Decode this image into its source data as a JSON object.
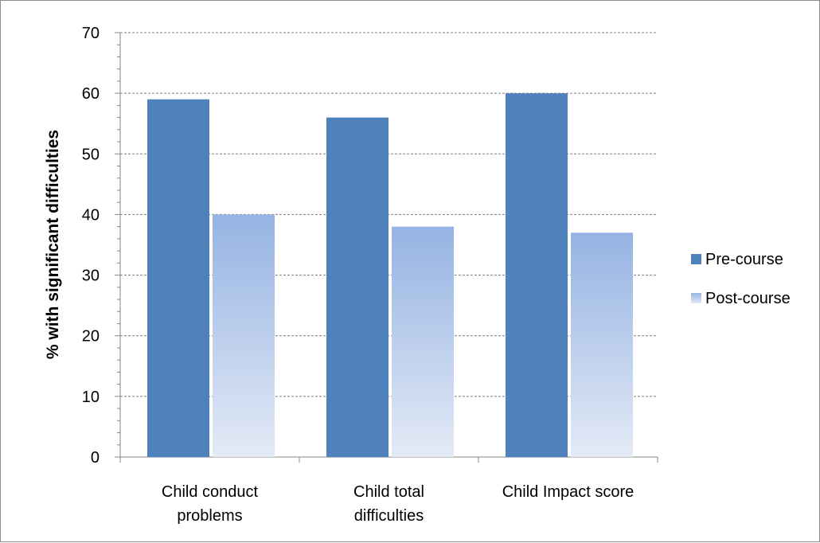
{
  "chart_data": {
    "type": "bar",
    "title": "",
    "xlabel": "",
    "ylabel": "% with significant difficulties",
    "ylim": [
      0,
      70
    ],
    "yticks": [
      0,
      10,
      20,
      30,
      40,
      50,
      60,
      70
    ],
    "grid": true,
    "legend_position": "right",
    "categories": [
      [
        "Child conduct",
        "problems"
      ],
      [
        "Child total",
        "difficulties"
      ],
      [
        "Child Impact score"
      ]
    ],
    "series": [
      {
        "name": "Pre-course",
        "values": [
          59,
          56,
          60
        ],
        "color": "#4f81bd"
      },
      {
        "name": "Post-course",
        "values": [
          40,
          38,
          37
        ],
        "color_top": "#95b3e3",
        "color_bottom": "#e3eaf6"
      }
    ]
  }
}
